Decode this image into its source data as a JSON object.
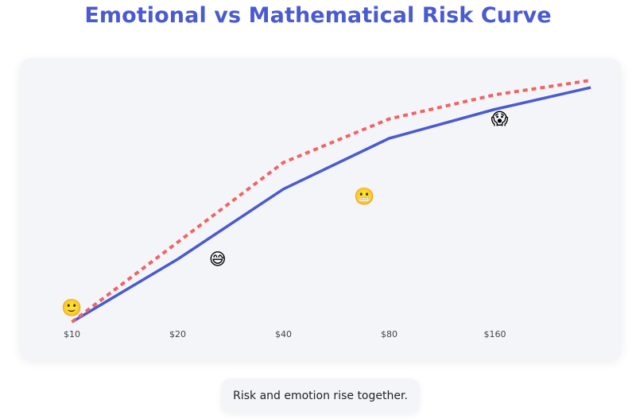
{
  "title": "Emotional vs Mathematical Risk Curve",
  "caption": "Risk and emotion rise together.",
  "colors": {
    "title": "#4a5ad0",
    "mathematical_line": "#4a5ad0",
    "emotional_line": "#f06464",
    "card_background": "#f4f5f9"
  },
  "chart_data": {
    "type": "line",
    "title": "Emotional vs Mathematical Risk Curve",
    "xlabel": "",
    "ylabel": "",
    "x_scale": "log2",
    "x_ticks": [
      "$10",
      "$20",
      "$40",
      "$80",
      "$160"
    ],
    "x": [
      10,
      20,
      40,
      80,
      160,
      300
    ],
    "grid": false,
    "legend": "none",
    "series": [
      {
        "style": "solid",
        "color": "#4a5ad0",
        "values": [
          0.0,
          0.26,
          0.55,
          0.76,
          0.88,
          0.97
        ]
      },
      {
        "style": "dashed",
        "color": "#f06464",
        "values": [
          0.0,
          0.33,
          0.66,
          0.84,
          0.94,
          1.0
        ]
      }
    ],
    "markers": [
      {
        "emoji": "🙂",
        "x": 10,
        "value": 0.06
      },
      {
        "emoji": "😅",
        "x": 26,
        "value": 0.26
      },
      {
        "emoji": "😬",
        "x": 68,
        "value": 0.52
      },
      {
        "emoji": "😱",
        "x": 165,
        "value": 0.84
      }
    ]
  }
}
